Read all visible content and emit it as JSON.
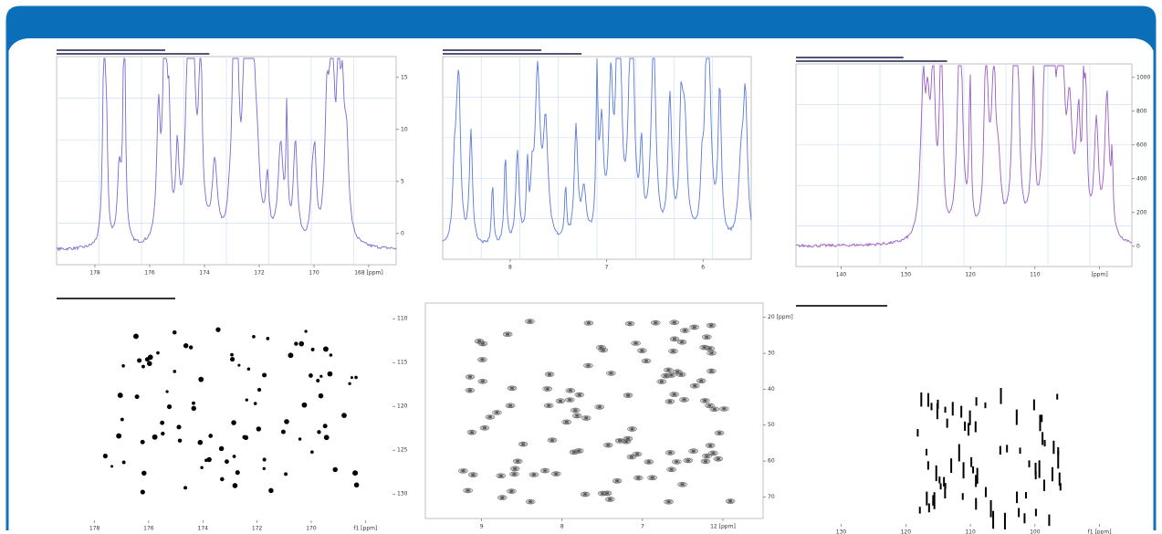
{
  "panels": [
    {
      "x_ticks": [
        "178",
        "176",
        "174",
        "172",
        "170",
        "168 [ppm]"
      ],
      "y_ticks": [
        "15",
        "10",
        "5",
        "0"
      ]
    },
    {
      "x_ticks": [
        "8",
        "7",
        "6"
      ],
      "y_ticks": []
    },
    {
      "x_ticks": [
        "140",
        "130",
        "120",
        "110",
        "[ppm]"
      ],
      "y_ticks": [
        "1000",
        "800",
        "600",
        "400",
        "200",
        "0"
      ]
    },
    {
      "x_ticks": [
        "178",
        "176",
        "174",
        "172",
        "170",
        "f1 [ppm]"
      ],
      "y_ticks": [
        "110",
        "115",
        "120",
        "125",
        "130"
      ]
    },
    {
      "x_ticks": [
        "9",
        "8",
        "7",
        "12 [ppm]"
      ],
      "y_ticks": [
        "20 [ppm]",
        "30",
        "40",
        "50",
        "60",
        "70"
      ]
    },
    {
      "x_ticks": [
        "130",
        "120",
        "110",
        "100",
        "f1 [ppm]"
      ],
      "y_ticks": []
    }
  ]
}
